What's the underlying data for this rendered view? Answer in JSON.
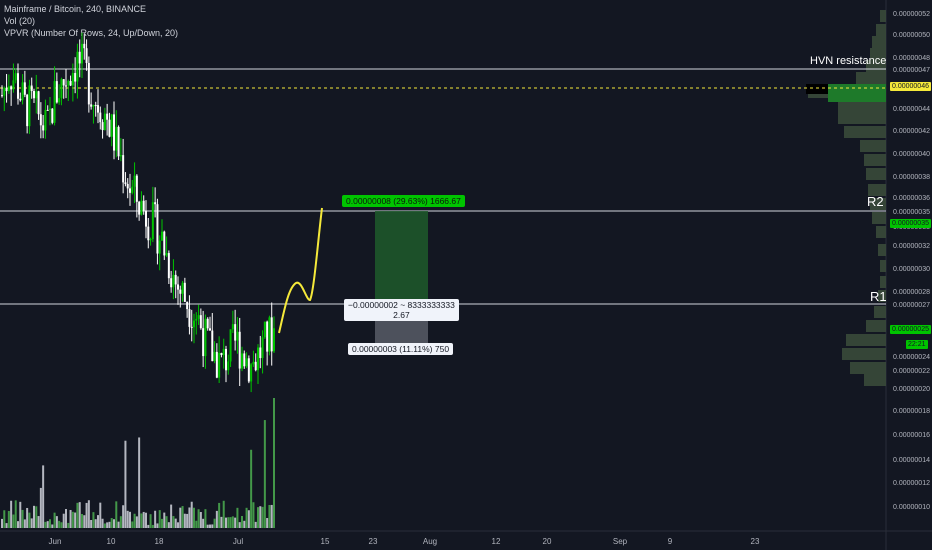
{
  "legend": {
    "symbol_line": "Mainframe / Bitcoin, 240, BINANCE",
    "vol_line": "Vol (20)",
    "vpvr_line": "VPVR (Number Of Rows, 24, Up/Down, 20)"
  },
  "annotations": {
    "hvn_label": "HVN resistance",
    "r2_label": "R2",
    "r1_label": "R1",
    "profit_box": "0.00000008 (29.63%) 1666.67",
    "rr_box_line1": "−0.00000002 ~ 8333333333",
    "rr_box_line2": "2.67",
    "stop_box": "0.00000003 (11.11%) 750"
  },
  "price_tags": {
    "hvn_price": "0.00000046",
    "r2_target": "0.00000035",
    "current": "0.00000025",
    "countdown": "22:21",
    "r1_level": "0.00000027",
    "stop": "0.00000024"
  },
  "colors": {
    "background": "#131722",
    "up_candle": "#00c400",
    "down_candle": "#ffffff",
    "projection": "#f5e93a",
    "profit_zone": "#1e5a2a",
    "stop_zone": "#5d606b",
    "hvn_highlight": "#f5e93a",
    "vpvr": "#3a4a3a"
  },
  "chart_data": {
    "type": "candlestick",
    "price_axis_ticks": [
      "0.00000052",
      "0.00000050",
      "0.00000048",
      "0.00000047",
      "0.00000046",
      "0.00000044",
      "0.00000042",
      "0.00000040",
      "0.00000038",
      "0.00000036",
      "0.00000035",
      "0.00000033",
      "0.00000032",
      "0.00000030",
      "0.00000028",
      "0.00000027",
      "0.00000025",
      "0.00000024",
      "0.00000022",
      "0.00000020",
      "0.00000018",
      "0.00000016",
      "0.00000014",
      "0.00000012",
      "0.00000010"
    ],
    "time_axis_ticks": [
      "Jun",
      "10",
      "18",
      "Jul",
      "15",
      "23",
      "Aug",
      "12",
      "20",
      "Sep",
      "9",
      "23"
    ],
    "horizontal_levels": [
      {
        "name": "HVN resistance",
        "price": 4.65e-07
      },
      {
        "name": "R2",
        "price": 3.5e-07
      },
      {
        "name": "R1",
        "price": 2.75e-07
      }
    ],
    "hvn_dashed_level": 4.58e-07,
    "close_trend": [
      4.5e-07,
      4.7e-07,
      4.6e-07,
      4.4e-07,
      4.4e-07,
      4.3e-07,
      4.2e-07,
      4.5e-07,
      4.6e-07,
      4.7e-07,
      4.8e-07,
      4.7e-07,
      4.5e-07,
      4.4e-07,
      4.3e-07,
      4.1e-07,
      3.9e-07,
      3.7e-07,
      3.6e-07,
      3.5e-07,
      3.4e-07,
      3.3e-07,
      3.1e-07,
      2.9e-07,
      2.8e-07,
      2.7e-07,
      2.6e-07,
      2.4e-07,
      2.3e-07,
      2.2e-07,
      2.3e-07,
      2.4e-07,
      2.3e-07,
      2.2e-07,
      2.3e-07,
      2.4e-07,
      2.5e-07
    ],
    "long_position": {
      "entry": 2.7e-07,
      "target": 3.5e-07,
      "stop": 2.4e-07,
      "profit_pct": "29.63%",
      "stop_pct": "11.11%",
      "risk_reward": "2.67"
    },
    "volume_spike_note": "large volume bar at last candle"
  }
}
